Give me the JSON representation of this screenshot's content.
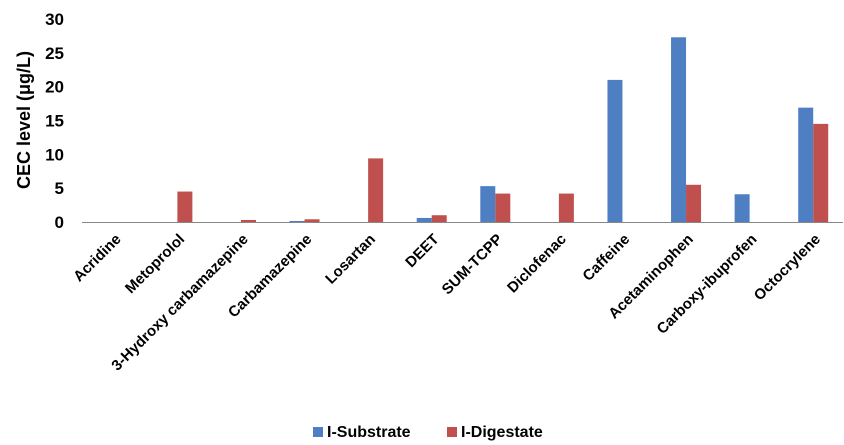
{
  "chart_data": {
    "type": "bar",
    "ylabel": "CEC level (μg/L)",
    "xlabel": "",
    "ylim": [
      0,
      30
    ],
    "yticks": [
      0,
      5,
      10,
      15,
      20,
      25,
      30
    ],
    "grid": false,
    "legend_position": "bottom",
    "categories": [
      "Acridine",
      "Metoprolol",
      "3-Hydroxy carbamazepine",
      "Carbamazepine",
      "Losartan",
      "DEET",
      "SUM-TCPP",
      "Diclofenac",
      "Caffeine",
      "Acetaminophen",
      "Carboxy-ibuprofen",
      "Octocrylene"
    ],
    "series": [
      {
        "name": "I-Substrate",
        "color": "#4F7FC3",
        "values": [
          0,
          0,
          0,
          0.15,
          0,
          0.6,
          5.3,
          0,
          21.0,
          27.3,
          4.1,
          16.9
        ]
      },
      {
        "name": "I-Digestate",
        "color": "#C0504D",
        "values": [
          0,
          4.5,
          0.3,
          0.4,
          9.4,
          1.0,
          4.2,
          4.2,
          0,
          5.5,
          0,
          14.5
        ]
      }
    ]
  }
}
